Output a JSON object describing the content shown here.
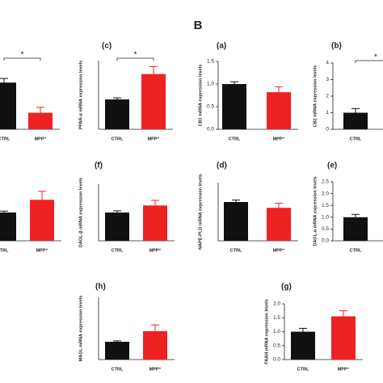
{
  "section_label": "B",
  "chart_data": [
    {
      "type": "bar",
      "categories": [
        "CTRL",
        "MPP⁺"
      ],
      "values": [
        1.7,
        0.6
      ],
      "errors": [
        0.15,
        0.2
      ],
      "colors": [
        "#111111",
        "#ee2222"
      ],
      "ylim": [
        0,
        2.5
      ],
      "significance": "*"
    },
    {
      "type": "bar",
      "label": "(c)",
      "ylabel": "PPAR-α mRNA expression levels",
      "categories": [
        "CTRL",
        "MPP⁺"
      ],
      "values": [
        1.0,
        1.85
      ],
      "errors": [
        0.05,
        0.25
      ],
      "colors": [
        "#111111",
        "#ee2222"
      ],
      "ylim": [
        0,
        2.3
      ],
      "significance": "*"
    },
    {
      "type": "bar",
      "label": "(a)",
      "ylabel": "CB1 mRNA expression levels",
      "categories": [
        "CTRL",
        "MPP⁺"
      ],
      "values": [
        1.0,
        0.82
      ],
      "errors": [
        0.05,
        0.12
      ],
      "colors": [
        "#111111",
        "#ee2222"
      ],
      "ylim": [
        0,
        1.5
      ],
      "yticks": [
        {
          "value": 0,
          "label": "0.0"
        },
        0.5,
        {
          "value": 1,
          "label": "1.0"
        },
        1.5
      ]
    },
    {
      "type": "bar",
      "label": "(b)",
      "ylabel": "CB2 mRNA expression levels",
      "categories": [
        "CTRL"
      ],
      "values": [
        1.0
      ],
      "errors": [
        0.25
      ],
      "colors": [
        "#111111"
      ],
      "ylim": [
        0,
        4
      ],
      "yticks": [
        0,
        1,
        2,
        3,
        4
      ],
      "significance": "*"
    },
    {
      "type": "bar",
      "categories": [
        "TRL",
        "MPP⁺"
      ],
      "values": [
        1.0,
        1.45
      ],
      "errors": [
        0.05,
        0.3
      ],
      "colors": [
        "#111111",
        "#ee2222"
      ],
      "ylim": [
        0,
        2
      ]
    },
    {
      "type": "bar",
      "label": "(f)",
      "ylabel": "DAGL-β mRNA expression levels",
      "categories": [
        "CTRL",
        "MPP⁺"
      ],
      "values": [
        1.0,
        1.25
      ],
      "errors": [
        0.06,
        0.18
      ],
      "colors": [
        "#111111",
        "#ee2222"
      ],
      "ylim": [
        0,
        2
      ]
    },
    {
      "type": "bar",
      "label": "(d)",
      "ylabel": "NAPE-PLD mRNA expression levels",
      "categories": [
        "CTRL",
        "MPP⁺"
      ],
      "values": [
        1.0,
        0.85
      ],
      "errors": [
        0.05,
        0.12
      ],
      "colors": [
        "#111111",
        "#ee2222"
      ],
      "ylim": [
        0,
        1.5
      ]
    },
    {
      "type": "bar",
      "label": "(e)",
      "ylabel": "DAGL-α mRNA expression levels",
      "categories": [
        "CTRL"
      ],
      "values": [
        1.0
      ],
      "errors": [
        0.12
      ],
      "colors": [
        "#111111"
      ],
      "ylim": [
        0,
        2.5
      ],
      "yticks": [
        {
          "value": 0,
          "label": "0.0"
        },
        0.5,
        {
          "value": 1,
          "label": "1.0"
        },
        1.5,
        {
          "value": 2,
          "label": "2.0"
        },
        2.5
      ]
    },
    {
      "type": "bar",
      "label": "(h)",
      "ylabel": "MAGL mRNA expression levels",
      "categories": [
        "CTRL",
        "MPP⁺"
      ],
      "values": [
        1.0,
        1.6
      ],
      "errors": [
        0.05,
        0.35
      ],
      "colors": [
        "#111111",
        "#ee2222"
      ],
      "ylim": [
        0,
        3.5
      ]
    },
    {
      "type": "bar",
      "label": "(g)",
      "ylabel": "FAAH mRNA expression levels",
      "categories": [
        "CTRL",
        "MPP⁺"
      ],
      "values": [
        1.0,
        1.55
      ],
      "errors": [
        0.12,
        0.2
      ],
      "colors": [
        "#111111",
        "#ee2222"
      ],
      "ylim": [
        0,
        2
      ],
      "yticks": [
        {
          "value": 0,
          "label": "0.0"
        },
        0.5,
        {
          "value": 1,
          "label": "1.0"
        },
        1.5,
        {
          "value": 2,
          "label": "2.0"
        }
      ]
    }
  ]
}
